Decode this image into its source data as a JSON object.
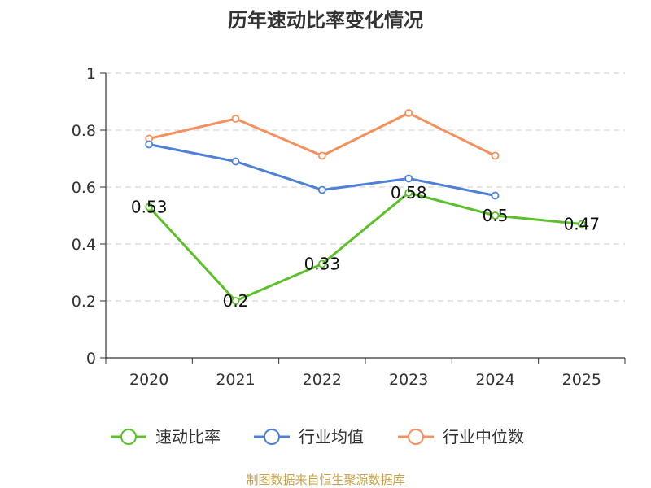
{
  "chart_data": {
    "type": "line",
    "title": "历年速动比率变化情况",
    "categories": [
      "2020",
      "2021",
      "2022",
      "2023",
      "2024",
      "2025"
    ],
    "ylim": [
      0,
      1
    ],
    "yticks": [
      "0",
      "0.2",
      "0.4",
      "0.6",
      "0.8",
      "1"
    ],
    "ytick_values": [
      0,
      0.2,
      0.4,
      0.6,
      0.8,
      1
    ],
    "grid": true,
    "legend_position": "bottom",
    "series": [
      {
        "name": "速动比率",
        "color": "#5bc02a",
        "values": [
          0.53,
          0.2,
          0.33,
          0.58,
          0.5,
          0.47
        ],
        "labels": [
          "0.53",
          "0.2",
          "0.33",
          "0.58",
          "0.5",
          "0.47"
        ]
      },
      {
        "name": "行业均值",
        "color": "#4e80d8",
        "values": [
          0.75,
          0.69,
          0.59,
          0.63,
          0.57,
          null
        ]
      },
      {
        "name": "行业中位数",
        "color": "#f4905d",
        "values": [
          0.77,
          0.84,
          0.71,
          0.86,
          0.71,
          null
        ]
      }
    ],
    "source": "制图数据来自恒生聚源数据库"
  }
}
